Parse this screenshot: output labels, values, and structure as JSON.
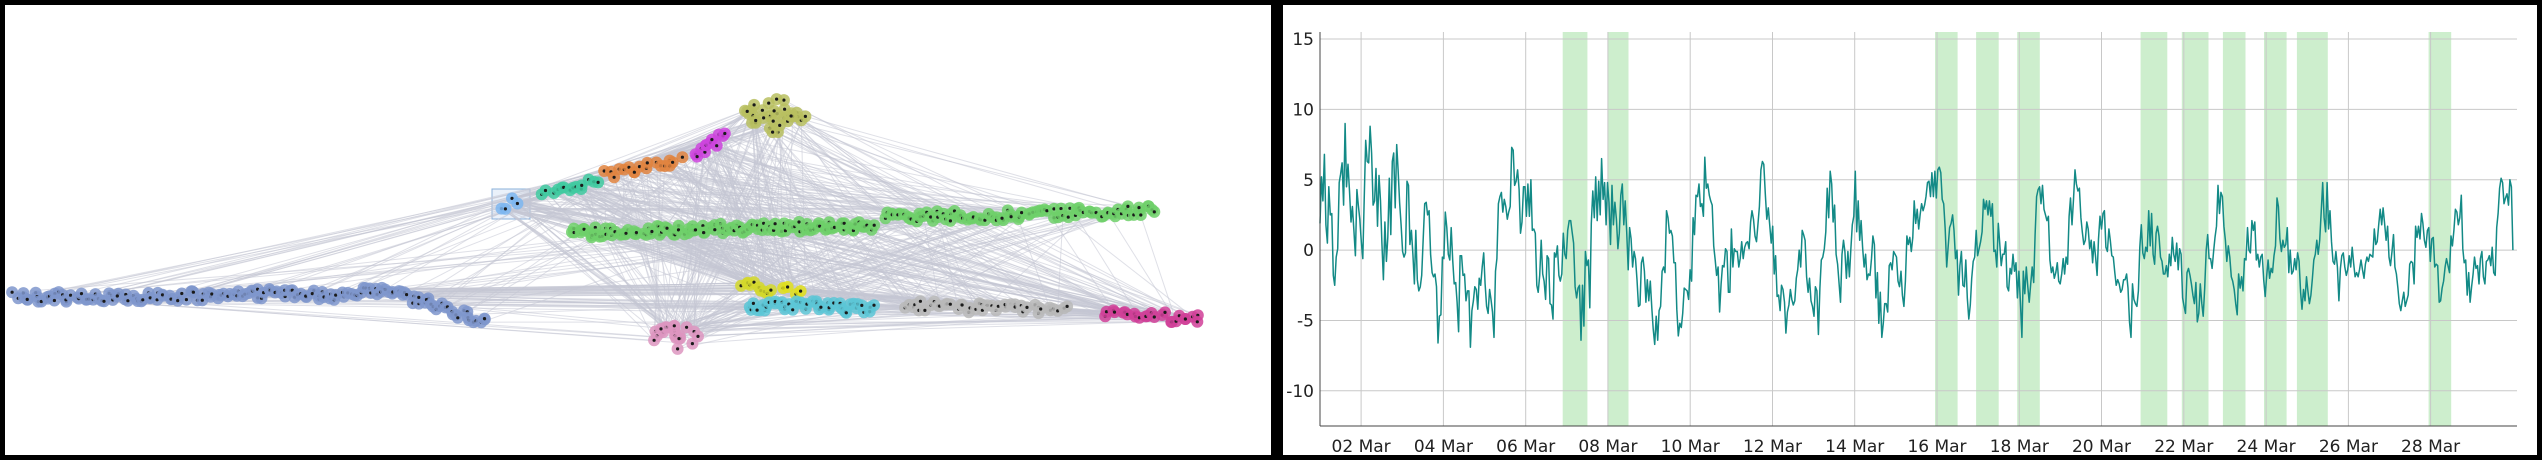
{
  "colors": {
    "background": "#000000",
    "panel": "#ffffff",
    "line": "#138a86",
    "band": "#cdeecd",
    "grid": "#c8c8c8",
    "edges": "#c5c7d3",
    "node_outline": "#1a1a1a"
  },
  "network": {
    "type": "network-graph",
    "clusters": [
      {
        "color": "#7f96cc",
        "count": 160,
        "shape": "chain",
        "pts": [
          [
            10,
            292
          ],
          [
            160,
            292
          ],
          [
            260,
            289
          ],
          [
            330,
            290
          ],
          [
            380,
            286
          ],
          [
            430,
            300
          ],
          [
            480,
            318
          ]
        ]
      },
      {
        "color": "#7db6f0",
        "count": 4,
        "shape": "chain",
        "pts": [
          [
            496,
            200
          ],
          [
            513,
            197
          ]
        ]
      },
      {
        "color": "#3fcaa0",
        "count": 14,
        "shape": "chain",
        "pts": [
          [
            538,
            186
          ],
          [
            592,
            178
          ]
        ]
      },
      {
        "color": "#e08440",
        "count": 18,
        "shape": "chain",
        "pts": [
          [
            600,
            171
          ],
          [
            675,
            157
          ]
        ]
      },
      {
        "color": "#cc44dd",
        "count": 12,
        "shape": "chain",
        "pts": [
          [
            690,
            150
          ],
          [
            718,
            131
          ]
        ]
      },
      {
        "color": "#b8c060",
        "count": 34,
        "shape": "blob",
        "pts": [
          [
            770,
            112
          ]
        ],
        "spread": [
          34,
          18
        ]
      },
      {
        "color": "#6ed06a",
        "count": 120,
        "shape": "chain",
        "pts": [
          [
            565,
            228
          ],
          [
            700,
            224
          ],
          [
            870,
            220
          ]
        ]
      },
      {
        "color": "#6ed06a",
        "count": 90,
        "shape": "chain",
        "pts": [
          [
            880,
            212
          ],
          [
            1010,
            210
          ],
          [
            1150,
            205
          ]
        ]
      },
      {
        "color": "#d4d82c",
        "count": 10,
        "shape": "chain",
        "pts": [
          [
            737,
            279
          ],
          [
            763,
            286
          ]
        ]
      },
      {
        "color": "#e0df1a",
        "count": 4,
        "shape": "chain",
        "pts": [
          [
            780,
            286
          ],
          [
            796,
            287
          ]
        ]
      },
      {
        "color": "#5cc6d6",
        "count": 46,
        "shape": "chain",
        "pts": [
          [
            744,
            303
          ],
          [
            800,
            300
          ],
          [
            868,
            305
          ]
        ]
      },
      {
        "color": "#b8b8b8",
        "count": 45,
        "shape": "chain",
        "pts": [
          [
            900,
            300
          ],
          [
            1060,
            306
          ]
        ]
      },
      {
        "color": "#d04098",
        "count": 25,
        "shape": "chain",
        "pts": [
          [
            1100,
            307
          ],
          [
            1195,
            315
          ]
        ]
      },
      {
        "color": "#dd95c0",
        "count": 22,
        "shape": "blob",
        "pts": [
          [
            670,
            332
          ]
        ],
        "spread": [
          26,
          12
        ]
      }
    ]
  },
  "chart_data": {
    "type": "line",
    "title": "",
    "xlabel": "",
    "ylabel": "",
    "x_range": [
      "01 Mar",
      "30 Mar"
    ],
    "ylim": [
      -12.5,
      15.5
    ],
    "grid": true,
    "y_ticks": [
      -10,
      -5,
      0,
      5,
      10,
      15
    ],
    "x_ticks": [
      "02 Mar",
      "04 Mar",
      "06 Mar",
      "08 Mar",
      "10 Mar",
      "12 Mar",
      "14 Mar",
      "16 Mar",
      "18 Mar",
      "20 Mar",
      "22 Mar",
      "24 Mar",
      "26 Mar",
      "28 Mar"
    ],
    "highlight_bands": [
      {
        "start": 6.9,
        "end": 7.5
      },
      {
        "start": 8.0,
        "end": 8.5
      },
      {
        "start": 15.95,
        "end": 16.5
      },
      {
        "start": 16.95,
        "end": 17.5
      },
      {
        "start": 17.95,
        "end": 18.5
      },
      {
        "start": 20.95,
        "end": 21.6
      },
      {
        "start": 21.95,
        "end": 22.6
      },
      {
        "start": 22.95,
        "end": 23.5
      },
      {
        "start": 23.95,
        "end": 24.5
      },
      {
        "start": 24.75,
        "end": 25.5
      },
      {
        "start": 27.95,
        "end": 28.5
      }
    ],
    "series": [
      {
        "day_start": 1.0,
        "day_end": 30.0,
        "values": [
          1.9,
          5.2,
          3.5,
          6.8,
          1.8,
          0.5,
          4.5,
          2.5,
          2.6,
          -1.8,
          -2.5,
          -0.5,
          0.1,
          4.8,
          5.4,
          6.2,
          3.2,
          9.0,
          4.5,
          6.1,
          4.2,
          2.0,
          3.1,
          1.4,
          -0.4,
          4.3,
          3.2,
          2.2,
          0.6,
          -0.6,
          3.6,
          7.8,
          6.3,
          6.2,
          8.8,
          6.9,
          3.2,
          3.5,
          5.8,
          1.7,
          5.3,
          3.5,
          0.5,
          -2.1,
          2.0,
          -0.8,
          0.9,
          5.1,
          1.1,
          6.3,
          6.9,
          3.0,
          7.5,
          5.7,
          3.4,
          1.8,
          -0.1,
          -0.5,
          -0.2,
          4.9,
          4.6,
          0.4,
          1.4,
          -0.3,
          -2.4,
          1.4,
          -2.1,
          -2.9,
          -2.6,
          -1.8,
          0.8,
          3.3,
          3.4,
          2.5,
          2.8,
          -0.3,
          -1.6,
          -1.9,
          -1.7,
          -2.6,
          -6.6,
          -4.7,
          -4.6,
          -0.5,
          -0.6,
          2.7,
          1.6,
          -0.3,
          -0.7,
          1.6,
          -0.7,
          -2.4,
          -2.3,
          -3.7,
          -5.8,
          -0.4,
          -0.4,
          -1.8,
          -1.7,
          -3.6,
          -2.9,
          -2.9,
          -6.9,
          -4.3,
          -3.6,
          -2.6,
          -2.8,
          -4.2,
          -2.0,
          -2.5,
          -1.2,
          -0.2,
          -2.4,
          -4.0,
          -4.5,
          -2.8,
          -3.5,
          -4.4,
          -6.2,
          -1.5,
          -0.6,
          3.3,
          3.8,
          4.1,
          2.7,
          3.6,
          3.1,
          2.2,
          2.7,
          3.1,
          7.3,
          7.1,
          4.6,
          4.9,
          5.7,
          4.3,
          1.2,
          2.0,
          4.5,
          4.5,
          2.4,
          4.7,
          2.4,
          5.0,
          1.4,
          1.5,
          1.2,
          -2.5,
          -3.0,
          -1.8,
          0.7,
          -1.7,
          -2.2,
          -3.5,
          -0.4,
          -0.6,
          -3.8,
          -3.9,
          -4.9,
          -0.2,
          -0.5,
          0.3,
          -1.8,
          -2.2,
          -1.7,
          1.2,
          -0.3,
          -0.6,
          1.4,
          2.1,
          2.1,
          1.3,
          0.5,
          -2.6,
          -3.4,
          -2.7,
          -2.5,
          -6.4,
          -2.5,
          -5.4,
          -0.1,
          -1.1,
          -0.7,
          -4.1,
          1.9,
          4.2,
          2.3,
          5.2,
          2.1,
          4.9,
          2.5,
          6.5,
          3.6,
          4.8,
          1.8,
          4.8,
          3.4,
          0.4,
          4.6,
          1.8,
          3.4,
          2.2,
          0.1,
          1.2,
          3.9,
          4.7,
          1.8,
          3.5,
          1.3,
          -1.4,
          1.6,
          0.8,
          -1.2,
          -0.1,
          -0.6,
          -2.1,
          -4.0,
          -3.9,
          -0.9,
          -0.5,
          -1.5,
          -3.7,
          -2.1,
          -3.6,
          -2.2,
          -4.1,
          -5.6,
          -6.7,
          -4.7,
          -6.4,
          -4.3,
          -4.0,
          -1.5,
          -1.2,
          -1.6,
          2.8,
          2.3,
          1.2,
          1.4,
          1.0,
          -0.9,
          -0.9,
          -4.2,
          -6.1,
          -5.2,
          -5.5,
          -4.5,
          -2.7,
          -2.8,
          -2.9,
          -3.5,
          -1.4,
          -2.2,
          2.3,
          1.1,
          3.9,
          3.8,
          4.7,
          3.1,
          3.3,
          2.4,
          6.6,
          4.4,
          4.7,
          3.9,
          3.5,
          3.2,
          0.3,
          -0.7,
          -1.8,
          -1.2,
          -4.4,
          -2.4,
          -1.1,
          -1.2,
          0.1,
          -0.1,
          -3.0,
          -3.0,
          1.5,
          -1.2,
          0.1,
          -0.1,
          -0.1,
          -1.2,
          -0.6,
          0.6,
          -0.6,
          0.2,
          0.5,
          0.6,
          0.1,
          2.0,
          2.8,
          2.2,
          1.0,
          0.6,
          1.8,
          3.1,
          5.7,
          6.3,
          6.1,
          4.0,
          2.2,
          3.0,
          1.8,
          0.5,
          1.7,
          -1.7,
          -0.4,
          -3.3,
          -3.2,
          -4.3,
          -2.5,
          -2.8,
          -3.7,
          -5.9,
          -4.4,
          -3.9,
          -2.8,
          -3.5,
          -3.9,
          -3.6,
          -2.0,
          -1.4,
          0.0,
          -1.2,
          1.4,
          1.1,
          0.7,
          -1.9,
          -3.0,
          -2.0,
          -3.6,
          -4.0,
          -4.7,
          -2.6,
          -2.9,
          -6.0,
          -2.7,
          -0.7,
          -0.5,
          0.1,
          1.3,
          4.4,
          2.3,
          5.6,
          4.7,
          2.0,
          3.2,
          -0.3,
          -1.0,
          -2.3,
          -3.7,
          -0.3,
          0.7,
          -0.1,
          -2.0,
          -0.1,
          -1.9,
          0.0,
          1.8,
          2.4,
          5.6,
          1.3,
          3.5,
          0.7,
          2.1,
          0.2,
          -1.2,
          -0.3,
          -2.1,
          -1.7,
          -1.8,
          -0.6,
          1.0,
          0.4,
          -3.4,
          -1.6,
          -5.2,
          -3.0,
          -6.2,
          -5.2,
          -3.8,
          -3.8,
          -4.4,
          -1.1,
          -0.9,
          -1.4,
          -0.1,
          -0.3,
          -0.5,
          -2.2,
          -2.6,
          -1.5,
          -3.2,
          -4.0,
          -2.2,
          1.0,
          0.4,
          0.9,
          -0.1,
          0.9,
          3.5,
          1.9,
          2.9,
          1.5,
          2.5,
          3.3,
          2.8,
          3.2,
          3.8,
          4.8,
          4.9,
          3.8,
          5.5,
          3.8,
          5.6,
          3.7,
          5.7,
          5.9,
          5.5,
          3.6,
          3.3,
          1.5,
          -1.2,
          0.2,
          1.6,
          1.9,
          2.5,
          1.4,
          -0.6,
          0.0,
          -3.2,
          -1.1,
          -0.1,
          -2.5,
          -2.6,
          -0.7,
          -3.4,
          -4.9,
          -3.9,
          -2.0,
          -0.8,
          -0.5,
          1.4,
          -0.4,
          0.1,
          0.6,
          1.3,
          3.6,
          2.9,
          3.5,
          2.5,
          3.5,
          2.4,
          3.3,
          -0.1,
          0.0,
          -1.2,
          1.9,
          0.4,
          -1.1,
          -0.3,
          -0.3,
          0.6,
          -2.6,
          -2.9,
          -1.3,
          -1.7,
          -0.3,
          -1.5,
          -0.9,
          -3.4,
          -1.5,
          -3.7,
          -6.2,
          -1.5,
          -3.1,
          -1.2,
          -2.6,
          -3.7,
          -2.4,
          -1.2,
          -2.3,
          1.1,
          3.8,
          4.3,
          4.5,
          3.3,
          4.6,
          2.9,
          2.5,
          2.1,
          2.4,
          -0.7,
          -1.6,
          -1.2,
          -2.0,
          -1.6,
          -0.9,
          -2.2,
          -2.4,
          -1.7,
          -0.6,
          -1.7,
          -0.5,
          -1.0,
          2.4,
          3.7,
          1.8,
          3.6,
          5.7,
          4.7,
          4.2,
          4.4,
          2.3,
          1.3,
          0.4,
          0.7,
          2.0,
          1.5,
          0.1,
          0.7,
          -0.9,
          0.6,
          -0.5,
          -1.8,
          0.8,
          2.4,
          1.5,
          2.6,
          2.8,
          0.2,
          -0.1,
          1.5,
          0.7,
          -0.4,
          -0.5,
          -1.6,
          -2.5,
          -2.1,
          -2.4,
          -3.0,
          -2.8,
          -2.1,
          -2.1,
          -1.7,
          -2.7,
          -5.1,
          -6.2,
          -2.4,
          -3.5,
          -3.8,
          -4.0,
          -2.9,
          0.2,
          1.8,
          -0.2,
          -0.6,
          0.2,
          -0.1,
          2.8,
          0.3,
          2.6,
          -0.3,
          -1.0,
          1.2,
          1.7,
          1.0,
          -0.5,
          -0.8,
          -1.7,
          -1.7,
          -1.1,
          -1.9,
          -0.3,
          -1.1,
          0.9,
          -0.3,
          -0.8,
          0.5,
          -1.4,
          0.1,
          -0.3,
          -3.4,
          -4.0,
          -4.5,
          -1.6,
          -1.3,
          -1.8,
          -2.4,
          -3.2,
          -3.8,
          -2.3,
          -5.1,
          -4.5,
          -2.4,
          -3.8,
          -4.7,
          -2.7,
          0.0,
          1.1,
          -0.6,
          -0.6,
          -1.3,
          -0.1,
          0.9,
          1.7,
          4.6,
          2.6,
          4.1,
          3.8,
          1.7,
          0.7,
          -0.8,
          0.3,
          -0.5,
          -1.9,
          -2.2,
          -2.8,
          -3.8,
          -4.6,
          -1.7,
          -2.7,
          -1.9,
          -2.9,
          -0.6,
          -0.7,
          1.6,
          0.0,
          -0.2,
          2.1,
          1.4,
          2.0,
          -0.7,
          -0.3,
          -1.2,
          -0.5,
          -0.3,
          -2.1,
          -3.3,
          -1.9,
          -0.7,
          -2.0,
          -1.3,
          -1.6,
          -0.4,
          0.3,
          3.7,
          3.1,
          0.8,
          -0.1,
          0.7,
          0.2,
          0.4,
          1.6,
          -1.6,
          0.0,
          -1.7,
          -1.5,
          -0.6,
          -1.4,
          -0.2,
          -0.8,
          -3.0,
          -4.2,
          -2.8,
          -3.6,
          -1.9,
          -2.9,
          -3.8,
          -3.2,
          -2.0,
          -0.7,
          -0.3,
          0.7,
          -0.3,
          0.7,
          2.7,
          4.8,
          2.3,
          1.3,
          4.8,
          1.5,
          2.8,
          0.6,
          -0.8,
          -1.0,
          -0.1,
          -1.2,
          -3.6,
          -1.3,
          -0.4,
          -0.2,
          -1.2,
          -1.8,
          -1.4,
          -0.4,
          -1.2,
          0.2,
          -0.9,
          -1.9,
          -1.6,
          -1.9,
          -1.4,
          -0.7,
          -1.4,
          -2.0,
          -1.0,
          -0.5,
          -0.8,
          -0.3,
          -0.4,
          -0.5,
          1.5,
          0.4,
          0.6,
          1.8,
          2.9,
          1.8,
          3.0,
          1.9,
          0.7,
          1.7,
          -0.5,
          -1.1,
          -0.1,
          1.1,
          -1.2,
          -1.7,
          -2.7,
          -3.8,
          -4.3,
          -3.6,
          -3.0,
          -4.0,
          -3.6,
          -3.2,
          -1.0,
          -0.8,
          -0.9,
          -2.4,
          1.7,
          0.9,
          1.7,
          0.8,
          2.6,
          1.9,
          0.7,
          0.2,
          1.4,
          1.6,
          -0.8,
          0.8,
          0.9,
          -1.2,
          -1.0,
          -1.1,
          -3.7,
          -3.6,
          -2.7,
          -2.2,
          -1.2,
          -0.6,
          -1.1,
          -1.6,
          1.0,
          0.3,
          1.4,
          2.9,
          2.7,
          1.8,
          2.3,
          3.9,
          0.1,
          -0.9,
          -0.7,
          -3.2,
          -1.6,
          -3.7,
          -2.6,
          -1.7,
          -0.5,
          -1.3,
          -1.1,
          -2.4,
          -0.6,
          -0.1,
          -1.9,
          -2.4,
          -0.8,
          -0.7,
          -0.4,
          -1.1,
          0.2,
          -1.6,
          -1.8,
          1.6,
          2.6,
          4.4,
          5.1,
          4.8,
          3.3,
          3.7,
          4.0,
          3.2,
          5.0,
          4.5,
          0.0
        ]
      }
    ]
  }
}
